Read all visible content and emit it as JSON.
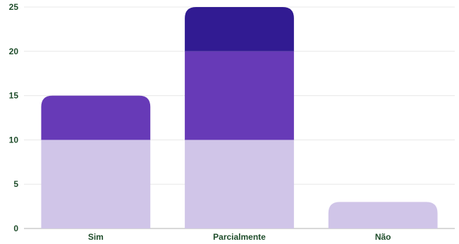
{
  "chart_data": {
    "type": "bar",
    "stacked": true,
    "categories": [
      "Sim",
      "Parcialmente",
      "Não"
    ],
    "series": [
      {
        "values": [
          10,
          10,
          3
        ],
        "color": "#d0c5e8"
      },
      {
        "values": [
          5,
          10,
          0
        ],
        "color": "#673ab7"
      },
      {
        "values": [
          0,
          5,
          0
        ],
        "color": "#311b92"
      }
    ],
    "ylim": [
      0,
      25
    ],
    "yticks": [
      0,
      5,
      10,
      15,
      20,
      25
    ],
    "title": "",
    "xlabel": "",
    "ylabel": "",
    "grid": true,
    "legend": "none"
  }
}
